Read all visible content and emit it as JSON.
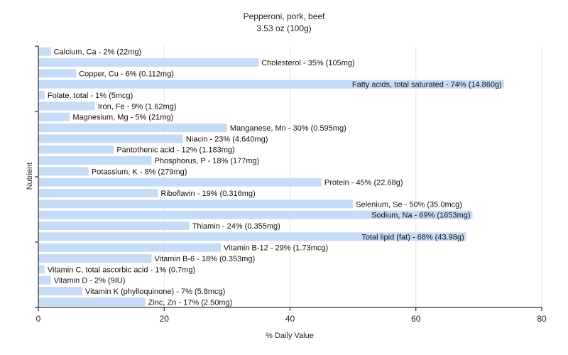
{
  "chart_data": {
    "type": "bar",
    "orientation": "horizontal",
    "title": "Pepperoni, pork, beef",
    "subtitle": "3.53 oz (100g)",
    "xlabel": "% Daily Value",
    "ylabel": "Nutrient",
    "xlim": [
      0,
      80
    ],
    "xticks": [
      0,
      20,
      40,
      60,
      80
    ],
    "grid": true,
    "bar_color": "#c6dcf6",
    "categories": [
      "Calcium, Ca",
      "Cholesterol",
      "Copper, Cu",
      "Fatty acids, total saturated",
      "Folate, total",
      "Iron, Fe",
      "Magnesium, Mg",
      "Manganese, Mn",
      "Niacin",
      "Pantothenic acid",
      "Phosphorus, P",
      "Potassium, K",
      "Protein",
      "Riboflavin",
      "Selenium, Se",
      "Sodium, Na",
      "Thiamin",
      "Total lipid (fat)",
      "Vitamin B-12",
      "Vitamin B-6",
      "Vitamin C, total ascorbic acid",
      "Vitamin D",
      "Vitamin K (phylloquinone)",
      "Zinc, Zn"
    ],
    "values": [
      2,
      35,
      6,
      74,
      1,
      9,
      5,
      30,
      23,
      12,
      18,
      8,
      45,
      19,
      50,
      69,
      24,
      68,
      29,
      18,
      1,
      2,
      7,
      17
    ],
    "labels": [
      "Calcium, Ca - 2% (22mg)",
      "Cholesterol - 35% (105mg)",
      "Copper, Cu - 6% (0.112mg)",
      "Fatty acids, total saturated - 74% (14.860g)",
      "Folate, total - 1% (5mcg)",
      "Iron, Fe - 9% (1.62mg)",
      "Magnesium, Mg - 5% (21mg)",
      "Manganese, Mn - 30% (0.595mg)",
      "Niacin - 23% (4.640mg)",
      "Pantothenic acid - 12% (1.183mg)",
      "Phosphorus, P - 18% (177mg)",
      "Potassium, K - 8% (279mg)",
      "Protein - 45% (22.68g)",
      "Riboflavin - 19% (0.316mg)",
      "Selenium, Se - 50% (35.0mcg)",
      "Sodium, Na - 69% (1653mg)",
      "Thiamin - 24% (0.355mg)",
      "Total lipid (fat) - 68% (43.98g)",
      "Vitamin B-12 - 29% (1.73mcg)",
      "Vitamin B-6 - 18% (0.353mg)",
      "Vitamin C, total ascorbic acid - 1% (0.7mg)",
      "Vitamin D - 2% (9IU)",
      "Vitamin K (phylloquinone) - 7% (5.8mcg)",
      "Zinc, Zn - 17% (2.50mg)"
    ]
  }
}
